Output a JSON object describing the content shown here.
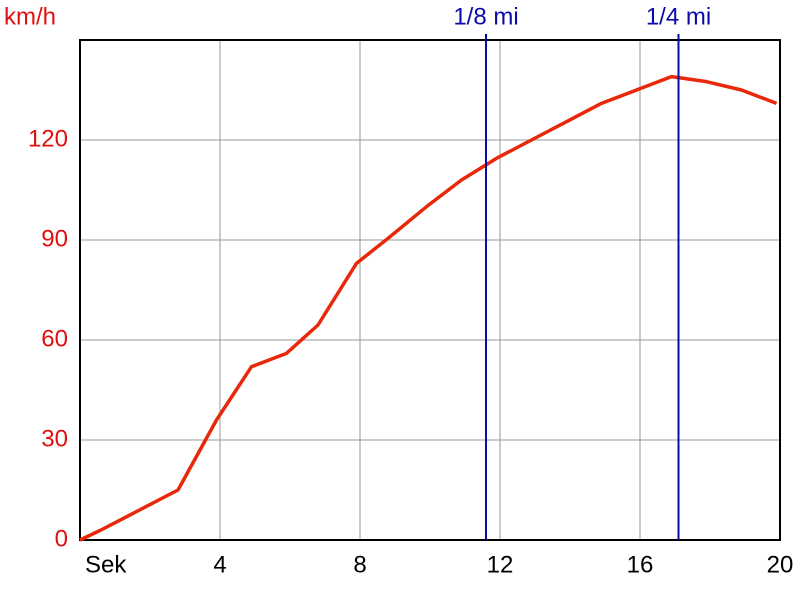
{
  "chart_data": {
    "type": "line",
    "y_label": "km/h",
    "x": [
      0,
      0.6,
      2.8,
      3.9,
      4.9,
      5.9,
      6.8,
      7.9,
      8.8,
      9.9,
      10.9,
      11.9,
      12.9,
      13.9,
      14.9,
      15.9,
      16.9,
      17.9,
      18.9,
      19.9
    ],
    "series": [
      {
        "color": "#e8280a",
        "values": [
          0,
          3,
          15,
          36,
          52,
          56,
          64.5,
          83,
          90.5,
          100,
          108,
          114.5,
          120,
          125.5,
          131,
          135,
          139,
          137.5,
          135,
          131
        ]
      }
    ],
    "xlim": [
      0,
      20
    ],
    "xticks": [
      {
        "value": 0,
        "label": "Sek"
      },
      4,
      8,
      12,
      16,
      20
    ],
    "ylim": [
      0,
      150
    ],
    "yticks": [
      0,
      30,
      60,
      90,
      120
    ],
    "grid": true,
    "markers": [
      {
        "label": "1/8 mi",
        "x": 11.6
      },
      {
        "label": "1/4 mi",
        "x": 17.1
      }
    ],
    "marker_color": "#0a0aa8",
    "y_tick_color": "#e01010"
  }
}
